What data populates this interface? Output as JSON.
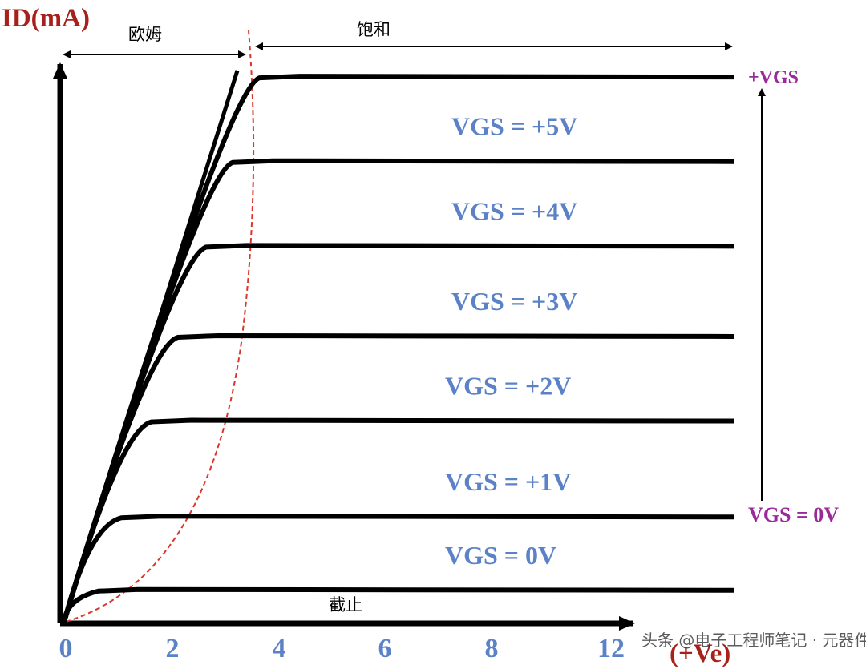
{
  "colors": {
    "axis": "#000000",
    "curve": "#000000",
    "boundary": "#d9372b",
    "axis_title": "#a8201a",
    "tick_label": "#5b82c7",
    "curve_label": "#5b82c7",
    "vgs_arrow_label": "#9a2a9a"
  },
  "chart_data": {
    "type": "line",
    "title": "",
    "ylabel": "ID(mA)",
    "xlabel": "(+Ve)",
    "xlim": [
      0,
      13
    ],
    "x_ticks": [
      "0",
      "2",
      "4",
      "6",
      "8",
      "12"
    ],
    "regions": {
      "ohmic": "欧姆",
      "saturation": "饱和",
      "cutoff": "截止"
    },
    "series": [
      {
        "name": "VGS = 0V",
        "saturation_level": 0.06
      },
      {
        "name": "VGS = +1V",
        "saturation_level": 0.19
      },
      {
        "name": "VGS = +2V",
        "saturation_level": 0.36
      },
      {
        "name": "VGS = +3V",
        "saturation_level": 0.51
      },
      {
        "name": "VGS = +4V",
        "saturation_level": 0.67
      },
      {
        "name": "VGS = +5V",
        "saturation_level": 0.82
      },
      {
        "name": "",
        "saturation_level": 0.97
      }
    ],
    "vgs_arrow": {
      "top": "+VGS",
      "bottom": "VGS = 0V"
    }
  },
  "watermark": "头条 @电子工程师笔记 · 元器件"
}
